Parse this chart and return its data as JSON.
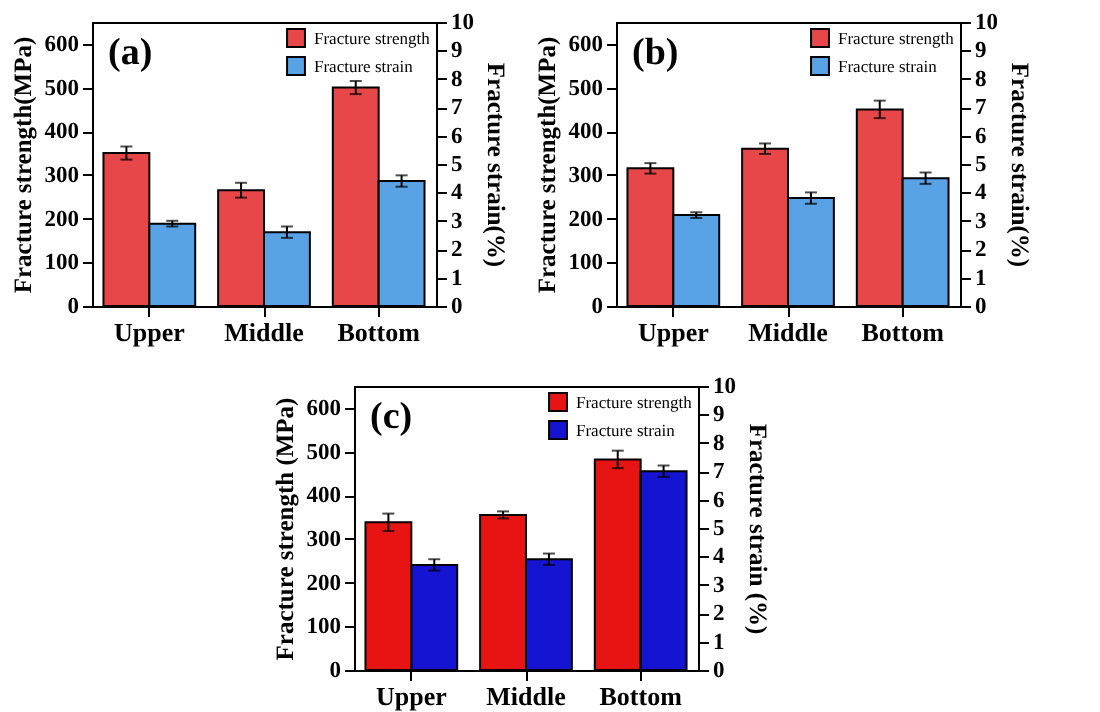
{
  "chart_data": [
    {
      "type": "bar",
      "annotations": [
        "(a)"
      ],
      "categories": [
        "Upper",
        "Middle",
        "Bottom"
      ],
      "ylabel": "Fracture strength(MPa)",
      "y2label": "Fracture strain(%)",
      "ylim": [
        0,
        650
      ],
      "yticks": [
        0,
        100,
        200,
        300,
        400,
        500,
        600
      ],
      "y2lim": [
        0,
        10
      ],
      "y2ticks": [
        0,
        1,
        2,
        3,
        4,
        5,
        6,
        7,
        8,
        9,
        10
      ],
      "legend": "top right",
      "series": [
        {
          "name": "Fracture strength",
          "color": "#e8474a",
          "values": [
            350,
            265,
            500
          ],
          "errors": [
            15,
            17,
            15
          ]
        },
        {
          "name": "Fracture strain",
          "color": "#5aa2e6",
          "axis": "y2",
          "values": [
            2.9,
            2.6,
            4.4
          ],
          "errors": [
            0.1,
            0.2,
            0.2
          ]
        }
      ]
    },
    {
      "type": "bar",
      "annotations": [
        "(b)"
      ],
      "categories": [
        "Upper",
        "Middle",
        "Bottom"
      ],
      "ylabel": "Fracture strength(MPa)",
      "y2label": "Fracture strain(%)",
      "ylim": [
        0,
        650
      ],
      "yticks": [
        0,
        100,
        200,
        300,
        400,
        500,
        600
      ],
      "y2lim": [
        0,
        10
      ],
      "y2ticks": [
        0,
        1,
        2,
        3,
        4,
        5,
        6,
        7,
        8,
        9,
        10
      ],
      "legend": "top right",
      "series": [
        {
          "name": "Fracture strength",
          "color": "#e8474a",
          "values": [
            315,
            360,
            450
          ],
          "errors": [
            12,
            12,
            20
          ]
        },
        {
          "name": "Fracture strain",
          "color": "#5aa2e6",
          "axis": "y2",
          "values": [
            3.2,
            3.8,
            4.5
          ],
          "errors": [
            0.1,
            0.2,
            0.2
          ]
        }
      ]
    },
    {
      "type": "bar",
      "annotations": [
        "(c)"
      ],
      "categories": [
        "Upper",
        "Middle",
        "Bottom"
      ],
      "ylabel": "Fracture strength (MPa)",
      "y2label": "Fracture strain (%)",
      "ylim": [
        0,
        650
      ],
      "yticks": [
        0,
        100,
        200,
        300,
        400,
        500,
        600
      ],
      "y2lim": [
        0,
        10
      ],
      "y2ticks": [
        0,
        1,
        2,
        3,
        4,
        5,
        6,
        7,
        8,
        9,
        10
      ],
      "legend": "top right",
      "series": [
        {
          "name": "Fracture strength",
          "color": "#e81414",
          "values": [
            338,
            355,
            482
          ],
          "errors": [
            20,
            8,
            20
          ]
        },
        {
          "name": "Fracture strain",
          "color": "#1414d2",
          "axis": "y2",
          "values": [
            3.7,
            3.9,
            7.0
          ],
          "errors": [
            0.2,
            0.2,
            0.2
          ]
        }
      ]
    }
  ]
}
